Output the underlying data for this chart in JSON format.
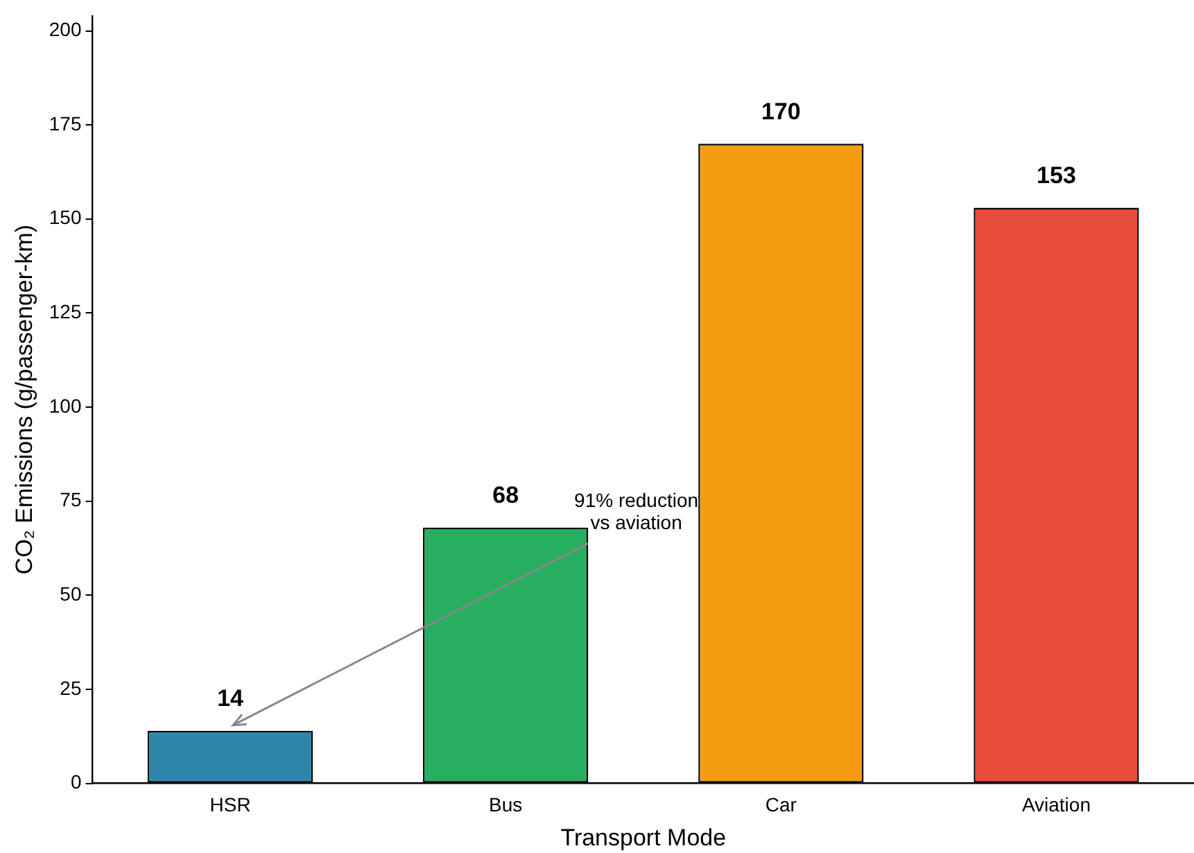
{
  "chart_data": {
    "type": "bar",
    "xlabel": "Transport Mode",
    "ylabel": "CO₂ Emissions (g/passenger-km)",
    "categories": [
      "HSR",
      "Bus",
      "Car",
      "Aviation"
    ],
    "values": [
      14,
      68,
      170,
      153
    ],
    "colors": [
      "#2e86ab",
      "#27ae60",
      "#f39c12",
      "#e74c3c"
    ],
    "ylim": [
      0,
      204
    ],
    "yticks": [
      0,
      25,
      50,
      75,
      100,
      125,
      150,
      175,
      200
    ],
    "grid": false,
    "legend": false,
    "data_labels": true,
    "annotations": [
      {
        "text": "91% reduction\nvs aviation",
        "x": "HSR",
        "y": 14
      }
    ]
  }
}
